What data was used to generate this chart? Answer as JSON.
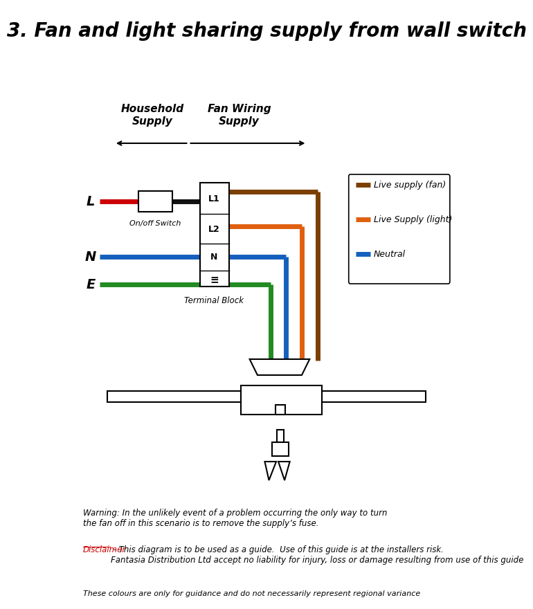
{
  "title": "3. Fan and light sharing supply from wall switch",
  "title_fontsize": 20,
  "title_style": "italic",
  "title_weight": "bold",
  "bg_color": "#ffffff",
  "onoff_label": "On/off Switch",
  "terminal_label": "Terminal Block",
  "legend_entries": [
    "Live supply (fan)",
    "Live Supply (light)",
    "Neutral"
  ],
  "legend_colors": [
    "#7B3F00",
    "#E06010",
    "#1560BD"
  ],
  "wire_colors": {
    "live_red": "#CC0000",
    "live_black": "#111111",
    "neutral_blue": "#1560BD",
    "earth_green": "#228B22",
    "fan_brown": "#7B3F00",
    "light_orange": "#E06010"
  },
  "warning_text": "Warning: In the unlikely event of a problem occurring the only way to turn\nthe fan off in this scenario is to remove the supply’s fuse.",
  "disclaimer_text": " - This diagram is to be used as a guide.  Use of this guide is at the installers risk.\nFantasia Distribution Ltd accept no liability for injury, loss or damage resulting from use of this guide",
  "disclaimer_label": "Disclaimer",
  "footer_text": "These colours are only for guidance and do not necessarily represent regional variance",
  "text_color": "#000000",
  "disclaimer_color": "#CC0000"
}
